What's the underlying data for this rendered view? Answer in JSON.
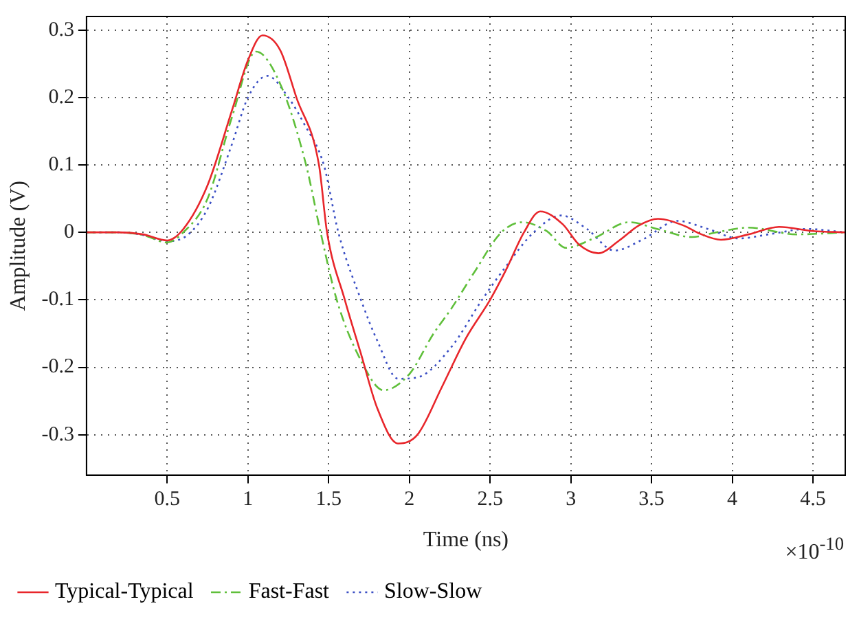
{
  "chart_data": {
    "type": "line",
    "xlabel": "Time (ns)",
    "ylabel": "Amplitude (V)",
    "annotations": [
      "×10$^{-10}$"
    ],
    "xlim": [
      0,
      4.7
    ],
    "xticks": [
      0.5,
      1,
      1.5,
      2,
      2.5,
      3,
      3.5,
      4,
      4.5
    ],
    "ylim": [
      -0.36,
      0.32
    ],
    "yticks": [
      -0.3,
      -0.2,
      -0.1,
      0,
      0.1,
      0.2,
      0.3
    ],
    "grid": true,
    "legend": "bottom",
    "marker": "none",
    "series": [
      {
        "name": "Typical-Typical",
        "color": "#e8262b",
        "line_style": "solid",
        "x": [
          0,
          0.2,
          0.35,
          0.5,
          0.6,
          0.75,
          0.9,
          1.0,
          1.09,
          1.2,
          1.3,
          1.44,
          1.49,
          1.6,
          1.7,
          1.8,
          1.93,
          2.05,
          2.2,
          2.35,
          2.5,
          2.6,
          2.71,
          2.81,
          2.95,
          3.05,
          3.17,
          3.3,
          3.42,
          3.54,
          3.7,
          3.8,
          3.93,
          4.1,
          4.29,
          4.5,
          4.7
        ],
        "values": [
          0,
          0,
          -0.003,
          -0.012,
          0.005,
          0.07,
          0.18,
          0.255,
          0.292,
          0.27,
          0.2,
          0.1,
          0,
          -0.1,
          -0.18,
          -0.26,
          -0.313,
          -0.3,
          -0.23,
          -0.157,
          -0.1,
          -0.055,
          0,
          0.031,
          0.012,
          -0.018,
          -0.031,
          -0.012,
          0.01,
          0.02,
          0.01,
          -0.002,
          -0.011,
          -0.003,
          0.008,
          0.002,
          0
        ]
      },
      {
        "name": "Fast-Fast",
        "color": "#5fbf3a",
        "line_style": "dashdot",
        "x": [
          0,
          0.2,
          0.35,
          0.5,
          0.6,
          0.75,
          0.9,
          1.05,
          1.2,
          1.36,
          1.45,
          1.55,
          1.7,
          1.84,
          2.0,
          2.15,
          2.26,
          2.4,
          2.57,
          2.7,
          2.85,
          2.97,
          3.15,
          3.36,
          3.55,
          3.75,
          3.9,
          4.1,
          4.4,
          4.7
        ],
        "values": [
          0,
          0,
          -0.004,
          -0.015,
          0.0,
          0.05,
          0.17,
          0.268,
          0.22,
          0.1,
          0,
          -0.1,
          -0.19,
          -0.234,
          -0.21,
          -0.15,
          -0.113,
          -0.06,
          0,
          0.015,
          0.002,
          -0.023,
          -0.008,
          0.015,
          0.004,
          -0.007,
          0.0,
          0.007,
          -0.003,
          0
        ]
      },
      {
        "name": "Slow-Slow",
        "color": "#3b4fc4",
        "line_style": "dotted",
        "x": [
          0,
          0.2,
          0.35,
          0.5,
          0.62,
          0.75,
          0.9,
          1.0,
          1.12,
          1.25,
          1.35,
          1.47,
          1.56,
          1.7,
          1.8,
          1.93,
          2.05,
          2.26,
          2.45,
          2.6,
          2.77,
          2.94,
          3.1,
          3.27,
          3.45,
          3.66,
          3.85,
          4.04,
          4.25,
          4.46,
          4.7
        ],
        "values": [
          0,
          0,
          -0.004,
          -0.013,
          -0.005,
          0.035,
          0.13,
          0.2,
          0.232,
          0.2,
          0.16,
          0.1,
          0,
          -0.1,
          -0.16,
          -0.217,
          -0.215,
          -0.17,
          -0.1,
          -0.05,
          0,
          0.025,
          0.005,
          -0.027,
          -0.01,
          0.017,
          0.005,
          -0.009,
          -0.002,
          0.005,
          0
        ]
      }
    ]
  }
}
